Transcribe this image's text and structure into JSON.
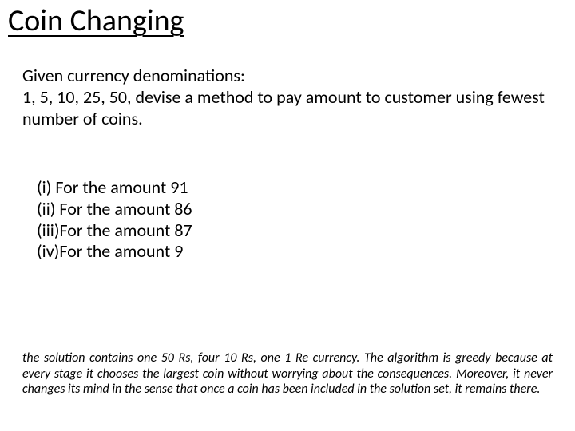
{
  "title": "Coin Changing",
  "intro": "Given currency denominations:\n1, 5, 10, 25, 50, devise a method to pay amount to customer using fewest number of coins.",
  "items": [
    "(i)  For the amount 91",
    "(ii) For the amount 86",
    "(iii)For the amount 87",
    "(iv)For the amount  9"
  ],
  "footnote": "the solution contains one 50 Rs, four 10 Rs, one 1 Re currency. The algorithm is greedy because at every stage it chooses the largest coin without worrying about the consequences. Moreover, it never changes its mind in the sense that once a coin has been included in the solution set, it remains there.",
  "style": {
    "background_color": "#ffffff",
    "text_color": "#000000",
    "title_fontsize": 38,
    "body_fontsize": 22,
    "footnote_fontsize": 16,
    "font_family": "Calibri, 'Segoe UI', Arial, sans-serif"
  }
}
